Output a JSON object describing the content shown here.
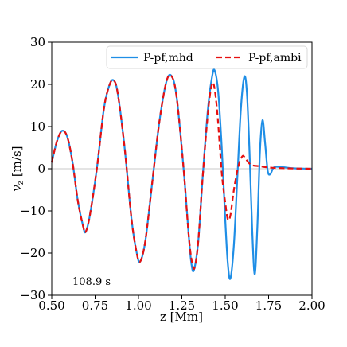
{
  "chart_data": {
    "type": "line",
    "title": "",
    "xlabel": "z [Mm]",
    "ylabel": "v_z [m/s]",
    "xlim": [
      0.5,
      2.0
    ],
    "ylim": [
      -30,
      30
    ],
    "xticks": [
      0.5,
      0.75,
      1.0,
      1.25,
      1.5,
      1.75,
      2.0
    ],
    "xtick_labels": [
      "0.50",
      "0.75",
      "1.00",
      "1.25",
      "1.50",
      "1.75",
      "2.00"
    ],
    "yticks": [
      -30,
      -20,
      -10,
      0,
      10,
      20,
      30
    ],
    "ytick_labels": [
      "−30",
      "−20",
      "−10",
      "0",
      "10",
      "20",
      "30"
    ],
    "grid": false,
    "zero_line": true,
    "legend_position": "top-right",
    "annotation": "108.9 s",
    "series": [
      {
        "name": "P-pf,mhd",
        "color": "#1f8ee6",
        "dash": "solid",
        "points": [
          [
            0.5,
            1.5
          ],
          [
            0.53,
            6.5
          ],
          [
            0.56,
            9.0
          ],
          [
            0.59,
            7.5
          ],
          [
            0.62,
            1.5
          ],
          [
            0.65,
            -7.5
          ],
          [
            0.68,
            -13.5
          ],
          [
            0.695,
            -15.0
          ],
          [
            0.72,
            -11.0
          ],
          [
            0.76,
            0.0
          ],
          [
            0.8,
            14.0
          ],
          [
            0.83,
            19.5
          ],
          [
            0.855,
            21.0
          ],
          [
            0.88,
            18.0
          ],
          [
            0.92,
            5.0
          ],
          [
            0.96,
            -12.0
          ],
          [
            0.99,
            -20.0
          ],
          [
            1.01,
            -22.0
          ],
          [
            1.04,
            -17.0
          ],
          [
            1.08,
            -3.0
          ],
          [
            1.12,
            11.0
          ],
          [
            1.16,
            20.5
          ],
          [
            1.19,
            22.0
          ],
          [
            1.22,
            17.0
          ],
          [
            1.26,
            0.0
          ],
          [
            1.29,
            -16.0
          ],
          [
            1.305,
            -22.5
          ],
          [
            1.32,
            -24.0
          ],
          [
            1.345,
            -17.0
          ],
          [
            1.37,
            -2.0
          ],
          [
            1.4,
            14.0
          ],
          [
            1.425,
            22.0
          ],
          [
            1.44,
            23.2
          ],
          [
            1.46,
            18.0
          ],
          [
            1.48,
            5.0
          ],
          [
            1.5,
            -12.0
          ],
          [
            1.515,
            -22.5
          ],
          [
            1.53,
            -26.0
          ],
          [
            1.55,
            -18.0
          ],
          [
            1.57,
            -2.0
          ],
          [
            1.59,
            14.0
          ],
          [
            1.61,
            21.8
          ],
          [
            1.625,
            18.0
          ],
          [
            1.64,
            4.0
          ],
          [
            1.655,
            -14.0
          ],
          [
            1.67,
            -25.0
          ],
          [
            1.685,
            -14.0
          ],
          [
            1.7,
            4.0
          ],
          [
            1.715,
            11.5
          ],
          [
            1.73,
            6.0
          ],
          [
            1.745,
            -0.5
          ],
          [
            1.76,
            -1.3
          ],
          [
            1.78,
            0.3
          ],
          [
            1.82,
            0.4
          ],
          [
            1.9,
            0.1
          ],
          [
            2.0,
            0.0
          ]
        ]
      },
      {
        "name": "P-pf,ambi",
        "color": "#e61010",
        "dash": "dashed",
        "points": [
          [
            0.5,
            1.5
          ],
          [
            0.53,
            6.5
          ],
          [
            0.56,
            9.0
          ],
          [
            0.59,
            7.5
          ],
          [
            0.62,
            1.5
          ],
          [
            0.65,
            -7.5
          ],
          [
            0.68,
            -13.5
          ],
          [
            0.695,
            -15.0
          ],
          [
            0.72,
            -11.0
          ],
          [
            0.76,
            0.0
          ],
          [
            0.8,
            14.0
          ],
          [
            0.83,
            19.5
          ],
          [
            0.855,
            21.0
          ],
          [
            0.88,
            18.0
          ],
          [
            0.92,
            5.0
          ],
          [
            0.96,
            -12.0
          ],
          [
            0.99,
            -20.0
          ],
          [
            1.01,
            -22.0
          ],
          [
            1.04,
            -17.0
          ],
          [
            1.08,
            -3.0
          ],
          [
            1.12,
            11.0
          ],
          [
            1.16,
            20.5
          ],
          [
            1.19,
            22.0
          ],
          [
            1.22,
            17.0
          ],
          [
            1.26,
            0.0
          ],
          [
            1.29,
            -16.0
          ],
          [
            1.31,
            -22.5
          ],
          [
            1.325,
            -23.3
          ],
          [
            1.345,
            -17.0
          ],
          [
            1.37,
            -2.0
          ],
          [
            1.4,
            13.0
          ],
          [
            1.42,
            19.5
          ],
          [
            1.435,
            19.8
          ],
          [
            1.455,
            13.0
          ],
          [
            1.48,
            -1.0
          ],
          [
            1.5,
            -8.0
          ],
          [
            1.515,
            -12.0
          ],
          [
            1.53,
            -11.0
          ],
          [
            1.55,
            -5.0
          ],
          [
            1.575,
            0.5
          ],
          [
            1.6,
            3.0
          ],
          [
            1.62,
            2.2
          ],
          [
            1.65,
            0.9
          ],
          [
            1.7,
            0.6
          ],
          [
            1.75,
            0.3
          ],
          [
            1.85,
            0.1
          ],
          [
            2.0,
            0.0
          ]
        ]
      }
    ]
  }
}
